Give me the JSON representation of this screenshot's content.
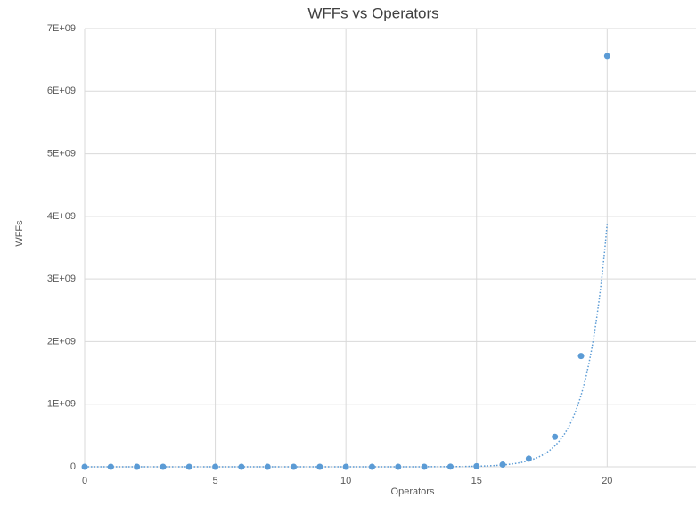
{
  "chart_data": {
    "type": "scatter",
    "title": "WFFs vs Operators",
    "x_label": "Operators",
    "y_label": "WFFs",
    "x": [
      0,
      1,
      2,
      3,
      4,
      5,
      6,
      7,
      8,
      9,
      10,
      11,
      12,
      13,
      14,
      15,
      16,
      17,
      18,
      19,
      20
    ],
    "series": [
      {
        "name": "WFFs",
        "color": "#5b9bd5",
        "values": [
          1,
          1,
          1,
          2,
          5,
          19,
          70,
          260,
          970,
          3600,
          13000,
          50000,
          180000,
          680000,
          2500000,
          9400000,
          35000000,
          130000000,
          480000000,
          1770000000,
          6560000000
        ]
      }
    ],
    "trendline": "exponential",
    "xlim": [
      0,
      23.4
    ],
    "xticks": [
      0,
      5,
      10,
      15,
      20
    ],
    "ylim": [
      0,
      7000000000
    ],
    "yticks": [
      0,
      {
        "value": 1000000000,
        "label": "1E+09"
      },
      {
        "value": 2000000000,
        "label": "2E+09"
      },
      {
        "value": 3000000000,
        "label": "3E+09"
      },
      {
        "value": 4000000000,
        "label": "4E+09"
      },
      {
        "value": 5000000000,
        "label": "5E+09"
      },
      {
        "value": 6000000000,
        "label": "6E+09"
      },
      {
        "value": 7000000000,
        "label": "7E+09"
      }
    ],
    "grid": true
  }
}
